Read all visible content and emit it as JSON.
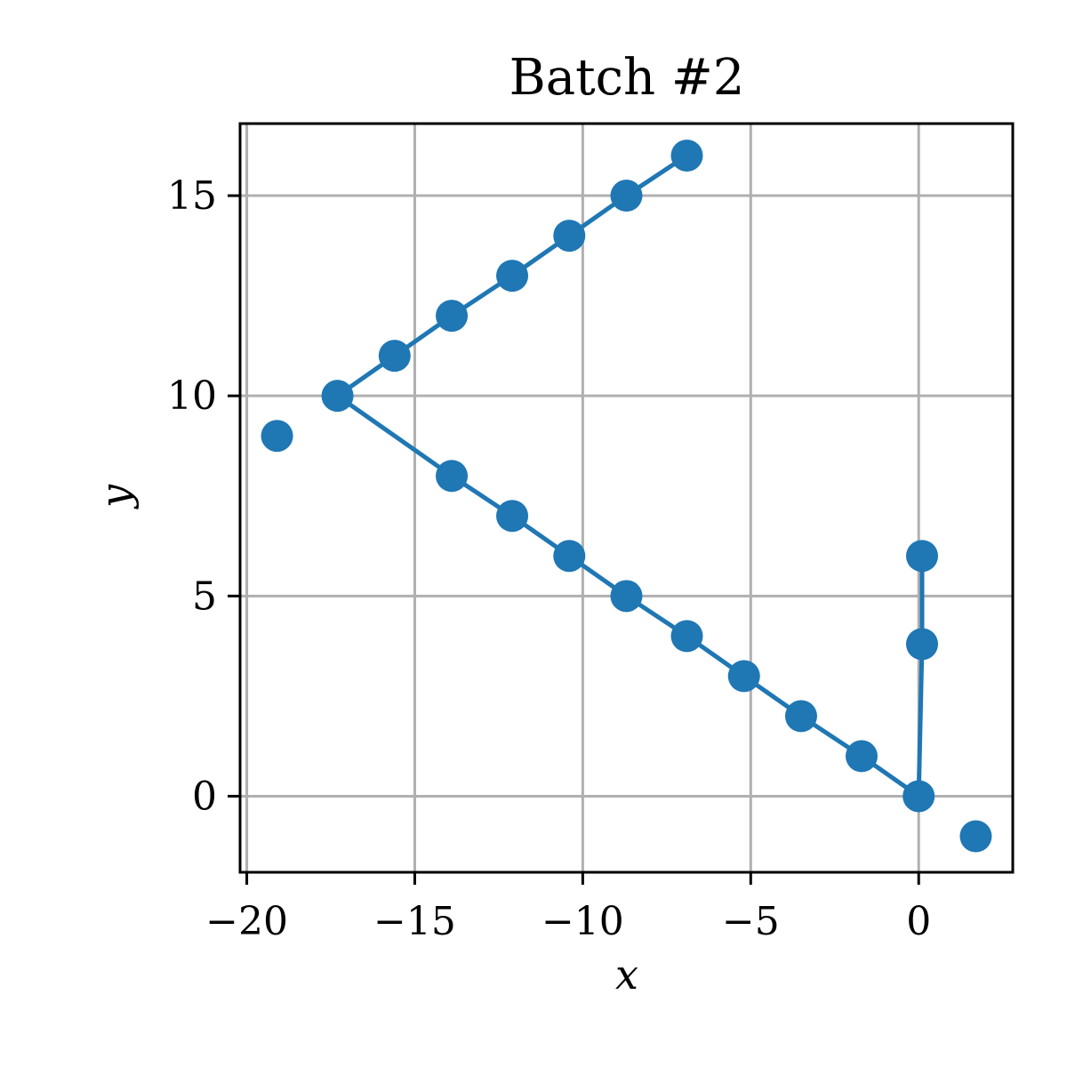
{
  "chart_data": {
    "type": "scatter",
    "title": "Batch #2",
    "xlabel": "x",
    "ylabel": "y",
    "xlim": [
      -20.2,
      2.8
    ],
    "ylim": [
      -1.9,
      16.8
    ],
    "xticks": [
      -20,
      -15,
      -10,
      -5,
      0
    ],
    "xtick_labels": [
      "−20",
      "−15",
      "−10",
      "−5",
      "0"
    ],
    "yticks": [
      0,
      5,
      10,
      15
    ],
    "ytick_labels": [
      "0",
      "5",
      "10",
      "15"
    ],
    "grid": true,
    "color": "#1f77b4",
    "lines": [
      {
        "x": [
          -17.3,
          -15.6,
          -13.9,
          -12.1,
          -10.4,
          -8.7,
          -6.9
        ],
        "y": [
          10,
          11,
          12,
          13,
          14,
          15,
          16
        ]
      },
      {
        "x": [
          -17.3,
          -13.9,
          -12.1,
          -10.4,
          -8.7,
          -6.9,
          -5.2,
          -3.5,
          -1.7,
          0
        ],
        "y": [
          10,
          8,
          7,
          6,
          5,
          4,
          3,
          2,
          1,
          0
        ]
      },
      {
        "x": [
          0,
          0.1,
          0.1
        ],
        "y": [
          0,
          3.8,
          6
        ]
      }
    ],
    "points": [
      {
        "x": -19.1,
        "y": 9
      },
      {
        "x": -17.3,
        "y": 10
      },
      {
        "x": -15.6,
        "y": 11
      },
      {
        "x": -13.9,
        "y": 12
      },
      {
        "x": -12.1,
        "y": 13
      },
      {
        "x": -10.4,
        "y": 14
      },
      {
        "x": -8.7,
        "y": 15
      },
      {
        "x": -6.9,
        "y": 16
      },
      {
        "x": -13.9,
        "y": 8
      },
      {
        "x": -12.1,
        "y": 7
      },
      {
        "x": -10.4,
        "y": 6
      },
      {
        "x": -8.7,
        "y": 5
      },
      {
        "x": -6.9,
        "y": 4
      },
      {
        "x": -5.2,
        "y": 3
      },
      {
        "x": -3.5,
        "y": 2
      },
      {
        "x": -1.7,
        "y": 1
      },
      {
        "x": 0,
        "y": 0
      },
      {
        "x": 0.1,
        "y": 3.8
      },
      {
        "x": 0.1,
        "y": 6
      },
      {
        "x": 1.7,
        "y": -1
      }
    ]
  }
}
